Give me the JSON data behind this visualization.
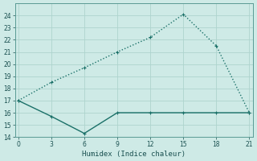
{
  "xlabel": "Humidex (Indice chaleur)",
  "x": [
    0,
    3,
    6,
    9,
    12,
    15,
    18,
    21
  ],
  "line1_y": [
    17,
    18.5,
    19.7,
    21.0,
    22.2,
    24.1,
    21.5,
    16.0
  ],
  "line2_y": [
    17,
    15.7,
    14.3,
    16.0,
    16.0,
    16.0,
    16.0,
    16.0
  ],
  "line_color": "#1a7068",
  "bg_color": "#ceeae6",
  "grid_color": "#aed4ce",
  "ylim": [
    14,
    25
  ],
  "xlim": [
    -0.3,
    21.3
  ],
  "yticks": [
    14,
    15,
    16,
    17,
    18,
    19,
    20,
    21,
    22,
    23,
    24
  ],
  "xticks": [
    0,
    3,
    6,
    9,
    12,
    15,
    18,
    21
  ],
  "markersize": 2.5,
  "linewidth": 1.0
}
